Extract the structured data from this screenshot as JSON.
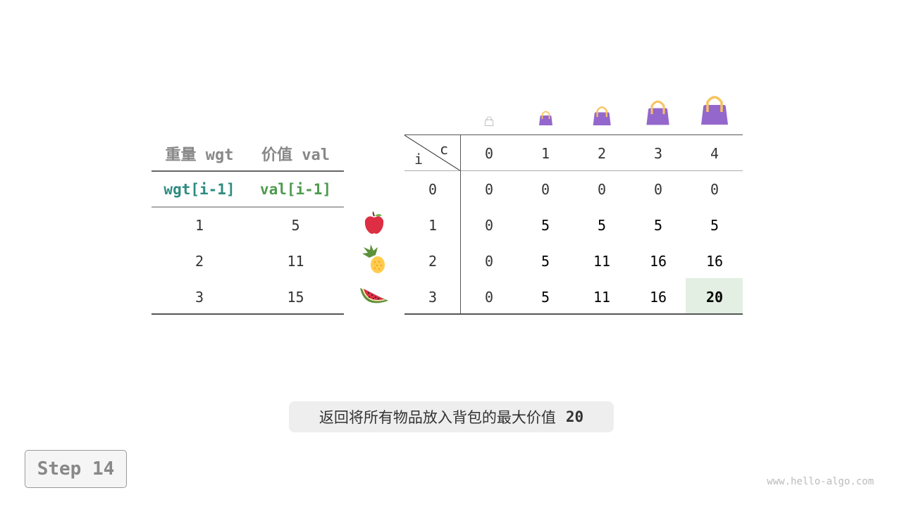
{
  "left_table": {
    "headers": [
      "重量 wgt",
      "价值 val"
    ],
    "subheaders": [
      "wgt[i-1]",
      "val[i-1]"
    ],
    "rows": [
      [
        "1",
        "5"
      ],
      [
        "2",
        "11"
      ],
      [
        "3",
        "15"
      ]
    ]
  },
  "items": [
    "apple-icon",
    "pineapple-icon",
    "watermelon-icon"
  ],
  "dp_table": {
    "corner_row_label": "i",
    "corner_col_label": "c",
    "col_headers": [
      "0",
      "1",
      "2",
      "3",
      "4"
    ],
    "row_headers": [
      "0",
      "1",
      "2",
      "3"
    ],
    "rows": [
      [
        "0",
        "0",
        "0",
        "0",
        "0"
      ],
      [
        "0",
        "5",
        "5",
        "5",
        "5"
      ],
      [
        "0",
        "5",
        "11",
        "16",
        "16"
      ],
      [
        "0",
        "5",
        "11",
        "16",
        "20"
      ]
    ],
    "highlight": {
      "row": 3,
      "col": 4,
      "color": "#e3efe3"
    }
  },
  "colors": {
    "wgt": "#2e8b80",
    "val": "#4f9a4f",
    "bag": "#9467cc",
    "handle": "#f7c35d"
  },
  "caption": {
    "text": "返回将所有物品放入背包的最大价值",
    "value": "20"
  },
  "step_label": "Step 14",
  "watermark": "www.hello-algo.com"
}
